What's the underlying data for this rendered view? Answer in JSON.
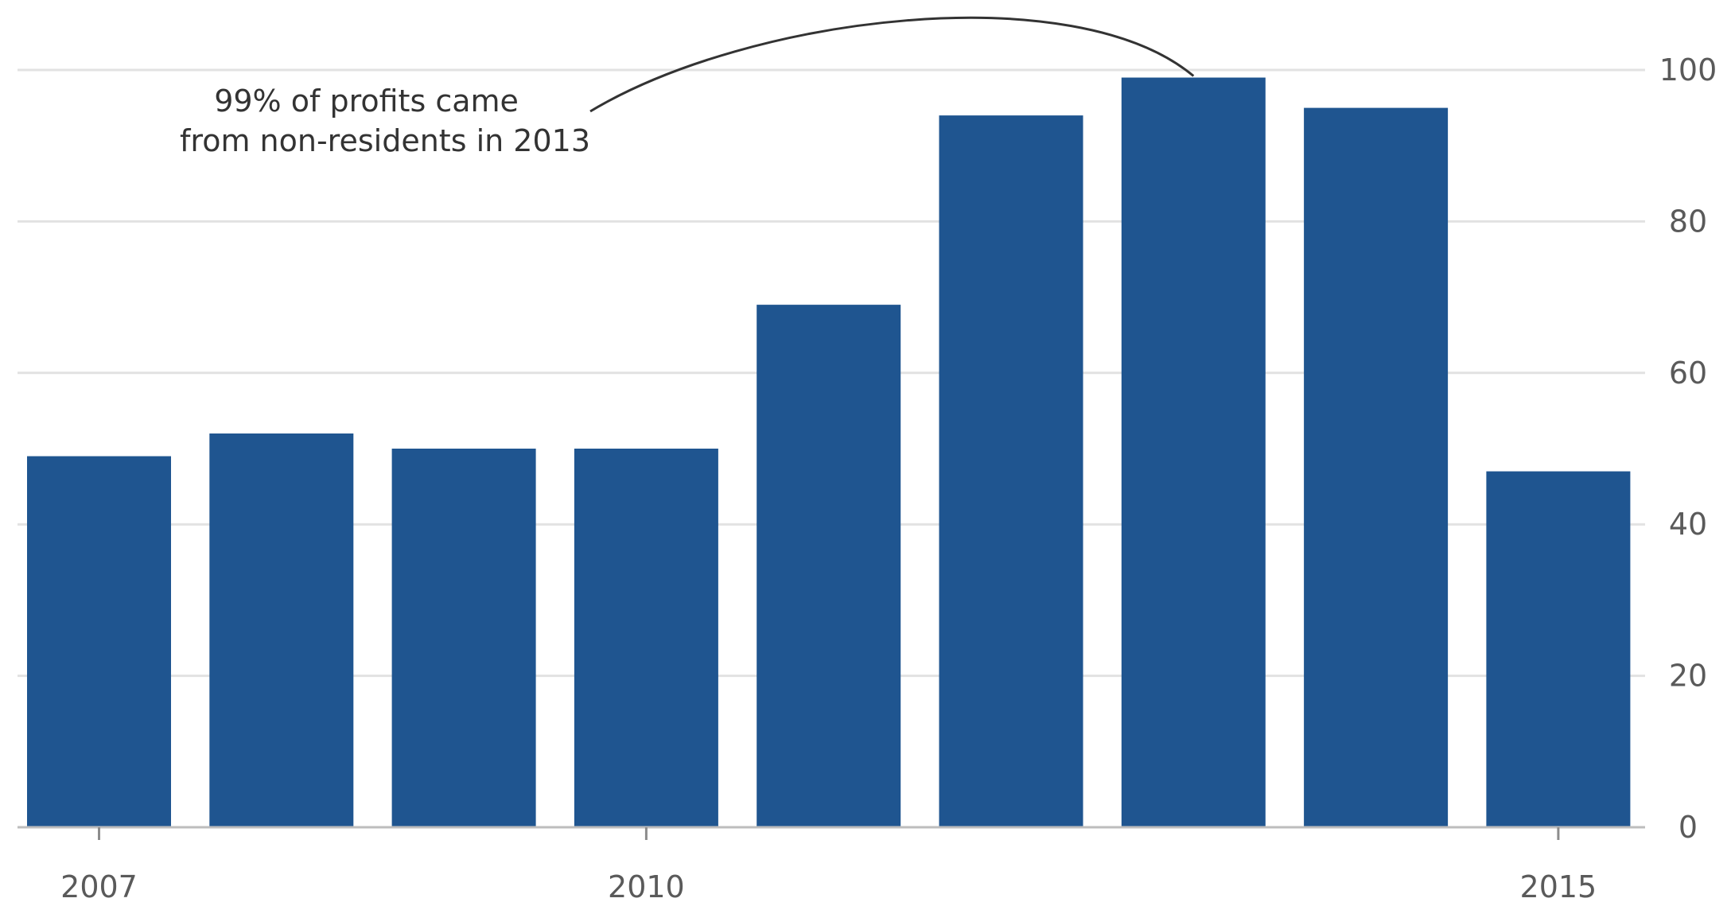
{
  "chart_data": {
    "type": "bar",
    "categories": [
      "2007",
      "2008",
      "2009",
      "2010",
      "2011",
      "2012",
      "2013",
      "2014",
      "2015"
    ],
    "values": [
      49,
      52,
      50,
      50,
      69,
      94,
      99,
      95,
      47
    ],
    "x_tick_labels": [
      "2007",
      "2010",
      "2015"
    ],
    "y_ticks": [
      0,
      20,
      40,
      60,
      80,
      100
    ],
    "ylim": [
      0,
      100
    ],
    "y_axis_position": "right",
    "grid": true,
    "bar_color": "#1f5590",
    "annotation": {
      "lines": [
        "99% of profits came",
        "from non-residents in 2013"
      ],
      "target_category": "2013"
    }
  }
}
